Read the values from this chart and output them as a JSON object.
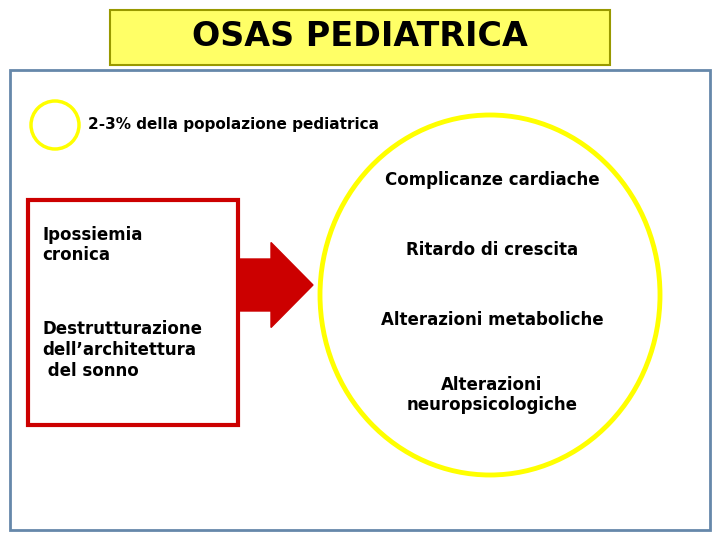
{
  "title": "OSAS PEDIATRICA",
  "title_bg": "#ffff66",
  "title_fontsize": 24,
  "subtitle": "2-3% della popolazione pediatrica",
  "subtitle_fontsize": 11,
  "left_box_text1": "Ipossiemia\ncronica",
  "left_box_text2": "Destrutturazione\ndell’architettura\n del sonno",
  "right_circle_texts": [
    "Complicanze cardiache",
    "Ritardo di crescita",
    "Alterazioni metaboliche",
    "Alterazioni\nneuropsicologiche"
  ],
  "left_box_color": "#cc0000",
  "arrow_color": "#cc0000",
  "circle_color": "#ffff00",
  "small_circle_color": "#ffff00",
  "bg_color": "#ffffff",
  "outer_border_color": "#6688aa",
  "text_color": "#000000",
  "text_fontsize": 12,
  "figsize": [
    7.2,
    5.4
  ],
  "dpi": 100
}
